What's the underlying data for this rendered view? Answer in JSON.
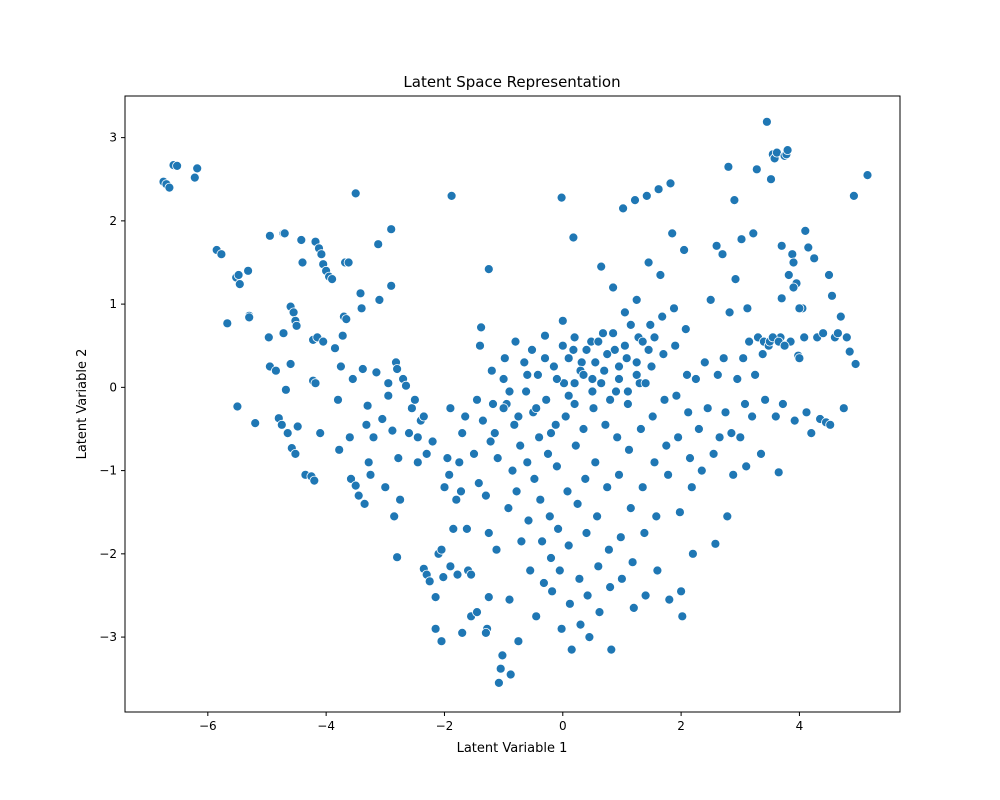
{
  "chart_data": {
    "type": "scatter",
    "title": "Latent Space Representation",
    "xlabel": "Latent Variable 1",
    "ylabel": "Latent Variable 2",
    "xlim": [
      -7.4,
      5.7
    ],
    "ylim": [
      -3.9,
      3.5
    ],
    "xticks": [
      -6,
      -4,
      -2,
      0,
      2,
      4
    ],
    "yticks": [
      -3,
      -2,
      -1,
      0,
      1,
      2,
      3
    ],
    "grid": false,
    "marker_color": "#1f77b4",
    "marker_edge_color": "#ffffff",
    "points": [
      [
        -6.75,
        2.47
      ],
      [
        -6.7,
        2.44
      ],
      [
        -6.65,
        2.4
      ],
      [
        -6.58,
        2.67
      ],
      [
        -6.52,
        2.66
      ],
      [
        -6.18,
        2.63
      ],
      [
        -6.22,
        2.52
      ],
      [
        -5.85,
        1.65
      ],
      [
        -5.77,
        1.6
      ],
      [
        -5.67,
        0.77
      ],
      [
        -5.52,
        1.32
      ],
      [
        -5.48,
        1.35
      ],
      [
        -5.46,
        1.24
      ],
      [
        -5.32,
        1.4
      ],
      [
        -5.3,
        0.86
      ],
      [
        -5.3,
        0.84
      ],
      [
        -5.5,
        -0.23
      ],
      [
        -5.2,
        -0.43
      ],
      [
        -4.95,
        1.82
      ],
      [
        -4.97,
        0.6
      ],
      [
        -4.95,
        0.25
      ],
      [
        -4.85,
        0.2
      ],
      [
        -4.8,
        -0.37
      ],
      [
        -4.75,
        -0.45
      ],
      [
        -4.72,
        1.85
      ],
      [
        -4.7,
        1.85
      ],
      [
        -4.72,
        0.65
      ],
      [
        -4.68,
        -0.03
      ],
      [
        -4.6,
        0.97
      ],
      [
        -4.55,
        0.9
      ],
      [
        -4.52,
        0.8
      ],
      [
        -4.5,
        0.74
      ],
      [
        -4.6,
        0.28
      ],
      [
        -4.65,
        -0.55
      ],
      [
        -4.58,
        -0.73
      ],
      [
        -4.52,
        -0.8
      ],
      [
        -4.48,
        -0.47
      ],
      [
        -4.4,
        1.5
      ],
      [
        -4.42,
        1.77
      ],
      [
        -4.35,
        -1.05
      ],
      [
        -4.25,
        -1.07
      ],
      [
        -4.22,
        0.57
      ],
      [
        -4.18,
        1.75
      ],
      [
        -4.12,
        1.67
      ],
      [
        -4.08,
        1.6
      ],
      [
        -4.05,
        1.48
      ],
      [
        -4.0,
        1.4
      ],
      [
        -3.95,
        1.33
      ],
      [
        -3.9,
        1.3
      ],
      [
        -4.22,
        0.08
      ],
      [
        -4.18,
        0.05
      ],
      [
        -4.15,
        0.6
      ],
      [
        -4.05,
        0.55
      ],
      [
        -4.1,
        -0.55
      ],
      [
        -4.2,
        -1.12
      ],
      [
        -3.85,
        0.47
      ],
      [
        -3.8,
        -0.15
      ],
      [
        -3.78,
        -0.75
      ],
      [
        -3.75,
        0.25
      ],
      [
        -3.72,
        0.62
      ],
      [
        -3.7,
        0.85
      ],
      [
        -3.66,
        0.82
      ],
      [
        -3.68,
        1.5
      ],
      [
        -3.62,
        1.5
      ],
      [
        -3.6,
        -0.6
      ],
      [
        -3.58,
        -1.1
      ],
      [
        -3.55,
        0.1
      ],
      [
        -3.5,
        2.33
      ],
      [
        -3.5,
        -1.18
      ],
      [
        -3.45,
        -1.3
      ],
      [
        -3.42,
        1.13
      ],
      [
        -3.4,
        0.95
      ],
      [
        -3.38,
        0.22
      ],
      [
        -3.35,
        -1.4
      ],
      [
        -3.32,
        -0.45
      ],
      [
        -3.3,
        -0.22
      ],
      [
        -3.28,
        -0.9
      ],
      [
        -3.25,
        -1.05
      ],
      [
        -3.2,
        -0.6
      ],
      [
        -3.15,
        0.18
      ],
      [
        -3.12,
        1.72
      ],
      [
        -3.1,
        1.05
      ],
      [
        -3.05,
        -0.38
      ],
      [
        -3.0,
        -1.2
      ],
      [
        -2.95,
        0.05
      ],
      [
        -2.95,
        -0.1
      ],
      [
        -2.9,
        1.9
      ],
      [
        -2.9,
        1.22
      ],
      [
        -2.88,
        -0.52
      ],
      [
        -2.85,
        -1.55
      ],
      [
        -2.82,
        0.3
      ],
      [
        -2.8,
        0.22
      ],
      [
        -2.78,
        -0.85
      ],
      [
        -2.75,
        -1.35
      ],
      [
        -2.7,
        0.1
      ],
      [
        -2.65,
        0.02
      ],
      [
        -2.6,
        -0.55
      ],
      [
        -2.55,
        -0.25
      ],
      [
        -2.5,
        -0.15
      ],
      [
        -2.45,
        -0.9
      ],
      [
        -2.8,
        -2.04
      ],
      [
        -2.45,
        -0.6
      ],
      [
        -2.4,
        -0.4
      ],
      [
        -2.35,
        -0.35
      ],
      [
        -2.3,
        -0.8
      ],
      [
        -2.35,
        -2.18
      ],
      [
        -2.3,
        -2.25
      ],
      [
        -2.25,
        -2.33
      ],
      [
        -2.2,
        -0.65
      ],
      [
        -2.15,
        -2.52
      ],
      [
        -2.1,
        -2.0
      ],
      [
        -2.05,
        -1.95
      ],
      [
        -2.02,
        -2.28
      ],
      [
        -2.0,
        -1.2
      ],
      [
        -1.95,
        -0.85
      ],
      [
        -1.92,
        -1.05
      ],
      [
        -1.9,
        -0.25
      ],
      [
        -1.9,
        -2.15
      ],
      [
        -1.85,
        -1.7
      ],
      [
        -1.8,
        -1.35
      ],
      [
        -1.78,
        -2.25
      ],
      [
        -1.75,
        -0.9
      ],
      [
        -1.72,
        -1.25
      ],
      [
        -1.7,
        -0.55
      ],
      [
        -1.65,
        -0.35
      ],
      [
        -1.62,
        -1.7
      ],
      [
        -1.6,
        -2.2
      ],
      [
        -1.55,
        -2.25
      ],
      [
        -1.5,
        -0.8
      ],
      [
        -1.45,
        -0.15
      ],
      [
        -1.42,
        -1.15
      ],
      [
        -1.4,
        0.5
      ],
      [
        -1.38,
        0.72
      ],
      [
        -1.35,
        -0.4
      ],
      [
        -1.3,
        -1.3
      ],
      [
        -1.28,
        -2.9
      ],
      [
        -1.25,
        -1.75
      ],
      [
        -1.22,
        -0.65
      ],
      [
        -1.2,
        0.2
      ],
      [
        -1.18,
        -0.2
      ],
      [
        -1.15,
        -0.55
      ],
      [
        -1.12,
        -1.95
      ],
      [
        -1.1,
        -0.85
      ],
      [
        -1.08,
        -3.55
      ],
      [
        -1.05,
        -3.38
      ],
      [
        -1.02,
        -3.22
      ],
      [
        -1.0,
        0.1
      ],
      [
        -0.98,
        0.35
      ],
      [
        -0.95,
        -0.2
      ],
      [
        -0.92,
        -1.45
      ],
      [
        -0.9,
        -2.55
      ],
      [
        -0.88,
        -3.45
      ],
      [
        -0.85,
        -1.0
      ],
      [
        -0.82,
        -0.45
      ],
      [
        -0.8,
        0.55
      ],
      [
        -0.78,
        -1.25
      ],
      [
        -0.75,
        -3.05
      ],
      [
        -0.72,
        -0.7
      ],
      [
        -0.7,
        -1.85
      ],
      [
        -1.55,
        -2.75
      ],
      [
        -1.45,
        -2.7
      ],
      [
        -1.7,
        -2.95
      ],
      [
        -1.88,
        2.3
      ],
      [
        -1.25,
        1.42
      ],
      [
        -0.02,
        2.28
      ],
      [
        0.18,
        1.8
      ],
      [
        -2.15,
        -2.9
      ],
      [
        -2.05,
        -3.05
      ],
      [
        -1.3,
        -2.95
      ],
      [
        -1.25,
        -2.52
      ],
      [
        -0.65,
        0.3
      ],
      [
        -0.62,
        -0.05
      ],
      [
        -0.6,
        -0.9
      ],
      [
        -0.58,
        -1.6
      ],
      [
        -0.55,
        -2.2
      ],
      [
        -0.52,
        0.45
      ],
      [
        -0.5,
        -0.3
      ],
      [
        -0.48,
        -1.1
      ],
      [
        -0.45,
        -2.75
      ],
      [
        -0.42,
        0.15
      ],
      [
        -0.4,
        -0.6
      ],
      [
        -0.38,
        -1.35
      ],
      [
        -0.35,
        -1.85
      ],
      [
        -0.32,
        -2.35
      ],
      [
        -0.3,
        0.62
      ],
      [
        -0.28,
        -0.15
      ],
      [
        -0.25,
        -0.8
      ],
      [
        -0.22,
        -1.55
      ],
      [
        -0.2,
        -2.05
      ],
      [
        -0.18,
        -2.45
      ],
      [
        -0.15,
        0.25
      ],
      [
        -0.12,
        -0.45
      ],
      [
        -0.1,
        -0.95
      ],
      [
        -0.08,
        -1.7
      ],
      [
        -0.05,
        -2.2
      ],
      [
        -0.02,
        -2.9
      ],
      [
        0.0,
        0.8
      ],
      [
        0.02,
        0.05
      ],
      [
        0.05,
        -0.35
      ],
      [
        0.08,
        -1.25
      ],
      [
        0.1,
        -1.9
      ],
      [
        0.12,
        -2.6
      ],
      [
        0.15,
        -3.15
      ],
      [
        0.18,
        0.45
      ],
      [
        0.2,
        -0.2
      ],
      [
        0.22,
        -0.7
      ],
      [
        0.25,
        -1.4
      ],
      [
        0.28,
        -2.3
      ],
      [
        0.3,
        -2.85
      ],
      [
        0.32,
        0.3
      ],
      [
        0.35,
        -0.5
      ],
      [
        0.38,
        -1.1
      ],
      [
        0.4,
        -1.75
      ],
      [
        0.42,
        -2.5
      ],
      [
        0.45,
        -3.0
      ],
      [
        0.48,
        0.55
      ],
      [
        0.5,
        0.1
      ],
      [
        0.52,
        -0.25
      ],
      [
        0.55,
        -0.9
      ],
      [
        0.58,
        -1.55
      ],
      [
        0.6,
        -2.15
      ],
      [
        0.62,
        -2.7
      ],
      [
        0.65,
        1.45
      ],
      [
        0.68,
        0.65
      ],
      [
        0.7,
        0.2
      ],
      [
        0.72,
        -0.45
      ],
      [
        0.75,
        -1.2
      ],
      [
        0.78,
        -1.95
      ],
      [
        0.8,
        -2.4
      ],
      [
        0.82,
        -3.15
      ],
      [
        0.85,
        1.2
      ],
      [
        0.88,
        0.45
      ],
      [
        0.9,
        -0.05
      ],
      [
        0.92,
        -0.6
      ],
      [
        0.95,
        -1.05
      ],
      [
        0.98,
        -1.8
      ],
      [
        1.0,
        -2.3
      ],
      [
        1.02,
        2.15
      ],
      [
        1.05,
        0.9
      ],
      [
        1.08,
        0.35
      ],
      [
        1.1,
        -0.2
      ],
      [
        1.12,
        -0.75
      ],
      [
        1.15,
        -1.45
      ],
      [
        1.18,
        -2.1
      ],
      [
        1.2,
        -2.65
      ],
      [
        1.22,
        2.25
      ],
      [
        1.25,
        1.05
      ],
      [
        1.28,
        0.6
      ],
      [
        1.3,
        0.05
      ],
      [
        1.32,
        -0.5
      ],
      [
        1.35,
        -1.2
      ],
      [
        1.38,
        -1.75
      ],
      [
        1.4,
        -2.5
      ],
      [
        1.42,
        2.3
      ],
      [
        1.45,
        1.5
      ],
      [
        1.48,
        0.75
      ],
      [
        1.5,
        0.25
      ],
      [
        1.52,
        -0.35
      ],
      [
        1.55,
        -0.9
      ],
      [
        1.58,
        -1.55
      ],
      [
        1.6,
        -2.2
      ],
      [
        1.62,
        2.38
      ],
      [
        1.65,
        1.35
      ],
      [
        1.68,
        0.85
      ],
      [
        1.7,
        0.4
      ],
      [
        1.72,
        -0.15
      ],
      [
        1.75,
        -0.7
      ],
      [
        1.78,
        -1.05
      ],
      [
        1.8,
        -2.55
      ],
      [
        1.82,
        2.45
      ],
      [
        1.85,
        1.85
      ],
      [
        1.88,
        0.95
      ],
      [
        1.9,
        0.5
      ],
      [
        1.92,
        -0.1
      ],
      [
        1.95,
        -0.6
      ],
      [
        1.98,
        -1.5
      ],
      [
        2.0,
        -2.45
      ],
      [
        2.02,
        -2.75
      ],
      [
        2.05,
        1.65
      ],
      [
        2.08,
        0.7
      ],
      [
        2.1,
        0.15
      ],
      [
        2.12,
        -0.3
      ],
      [
        2.15,
        -0.85
      ],
      [
        2.18,
        -1.2
      ],
      [
        2.2,
        -2.0
      ],
      [
        0.0,
        0.5
      ],
      [
        0.1,
        0.35
      ],
      [
        0.2,
        0.6
      ],
      [
        0.3,
        0.2
      ],
      [
        0.4,
        0.45
      ],
      [
        0.55,
        0.3
      ],
      [
        0.6,
        0.55
      ],
      [
        0.75,
        0.4
      ],
      [
        0.85,
        0.65
      ],
      [
        0.95,
        0.25
      ],
      [
        1.05,
        0.5
      ],
      [
        1.15,
        0.75
      ],
      [
        1.25,
        0.3
      ],
      [
        1.35,
        0.55
      ],
      [
        1.45,
        0.45
      ],
      [
        1.55,
        0.6
      ],
      [
        0.1,
        -0.1
      ],
      [
        0.2,
        0.05
      ],
      [
        0.35,
        0.15
      ],
      [
        0.5,
        -0.05
      ],
      [
        0.65,
        0.05
      ],
      [
        0.8,
        -0.15
      ],
      [
        0.95,
        0.1
      ],
      [
        1.1,
        -0.05
      ],
      [
        1.25,
        0.15
      ],
      [
        1.4,
        0.05
      ],
      [
        -1.0,
        -0.25
      ],
      [
        -0.9,
        -0.05
      ],
      [
        -0.75,
        -0.35
      ],
      [
        -0.6,
        0.15
      ],
      [
        -0.45,
        -0.25
      ],
      [
        -0.3,
        0.35
      ],
      [
        -0.2,
        -0.55
      ],
      [
        -0.1,
        0.1
      ],
      [
        2.25,
        0.1
      ],
      [
        2.3,
        -0.5
      ],
      [
        2.35,
        -1.0
      ],
      [
        2.4,
        0.3
      ],
      [
        2.45,
        -0.25
      ],
      [
        2.5,
        1.05
      ],
      [
        2.55,
        -0.8
      ],
      [
        2.58,
        -1.88
      ],
      [
        2.6,
        1.7
      ],
      [
        2.62,
        0.15
      ],
      [
        2.65,
        -0.6
      ],
      [
        2.7,
        1.6
      ],
      [
        2.72,
        0.35
      ],
      [
        2.75,
        -0.3
      ],
      [
        2.78,
        -1.55
      ],
      [
        2.8,
        2.65
      ],
      [
        2.82,
        0.9
      ],
      [
        2.85,
        -0.55
      ],
      [
        2.88,
        -1.05
      ],
      [
        2.9,
        2.25
      ],
      [
        2.92,
        1.3
      ],
      [
        2.95,
        0.1
      ],
      [
        3.0,
        -0.6
      ],
      [
        3.02,
        1.78
      ],
      [
        3.05,
        0.35
      ],
      [
        3.08,
        -0.2
      ],
      [
        3.1,
        -0.95
      ],
      [
        3.12,
        0.95
      ],
      [
        3.15,
        0.55
      ],
      [
        3.2,
        -0.35
      ],
      [
        3.22,
        1.85
      ],
      [
        3.25,
        0.15
      ],
      [
        3.28,
        2.62
      ],
      [
        3.3,
        0.6
      ],
      [
        3.35,
        -0.8
      ],
      [
        3.38,
        0.4
      ],
      [
        3.4,
        0.55
      ],
      [
        3.42,
        -0.15
      ],
      [
        3.45,
        3.19
      ],
      [
        3.48,
        0.5
      ],
      [
        3.5,
        0.55
      ],
      [
        3.52,
        2.5
      ],
      [
        3.55,
        2.8
      ],
      [
        3.58,
        2.75
      ],
      [
        3.6,
        -0.35
      ],
      [
        3.62,
        2.82
      ],
      [
        3.65,
        -1.02
      ],
      [
        3.68,
        0.6
      ],
      [
        3.7,
        1.7
      ],
      [
        3.72,
        -0.2
      ],
      [
        3.75,
        2.78
      ],
      [
        3.78,
        2.8
      ],
      [
        3.8,
        2.85
      ],
      [
        3.82,
        1.35
      ],
      [
        3.85,
        0.55
      ],
      [
        3.88,
        1.6
      ],
      [
        3.9,
        1.5
      ],
      [
        3.92,
        -0.4
      ],
      [
        3.95,
        1.25
      ],
      [
        3.98,
        0.38
      ],
      [
        4.0,
        0.35
      ],
      [
        4.05,
        0.95
      ],
      [
        4.08,
        0.6
      ],
      [
        4.1,
        1.88
      ],
      [
        4.12,
        -0.3
      ],
      [
        4.15,
        1.68
      ],
      [
        4.2,
        -0.55
      ],
      [
        4.25,
        1.55
      ],
      [
        4.3,
        0.6
      ],
      [
        4.35,
        -0.38
      ],
      [
        4.4,
        0.65
      ],
      [
        4.45,
        -0.42
      ],
      [
        4.5,
        1.35
      ],
      [
        4.52,
        -0.45
      ],
      [
        4.55,
        1.1
      ],
      [
        4.6,
        0.6
      ],
      [
        4.65,
        0.65
      ],
      [
        4.7,
        0.85
      ],
      [
        4.75,
        -0.25
      ],
      [
        4.8,
        0.6
      ],
      [
        4.85,
        0.43
      ],
      [
        4.95,
        0.28
      ],
      [
        4.92,
        2.3
      ],
      [
        5.15,
        2.55
      ],
      [
        3.7,
        1.07
      ],
      [
        3.9,
        1.2
      ],
      [
        4.0,
        0.95
      ],
      [
        3.55,
        0.6
      ],
      [
        3.65,
        0.55
      ],
      [
        3.75,
        0.5
      ]
    ]
  }
}
